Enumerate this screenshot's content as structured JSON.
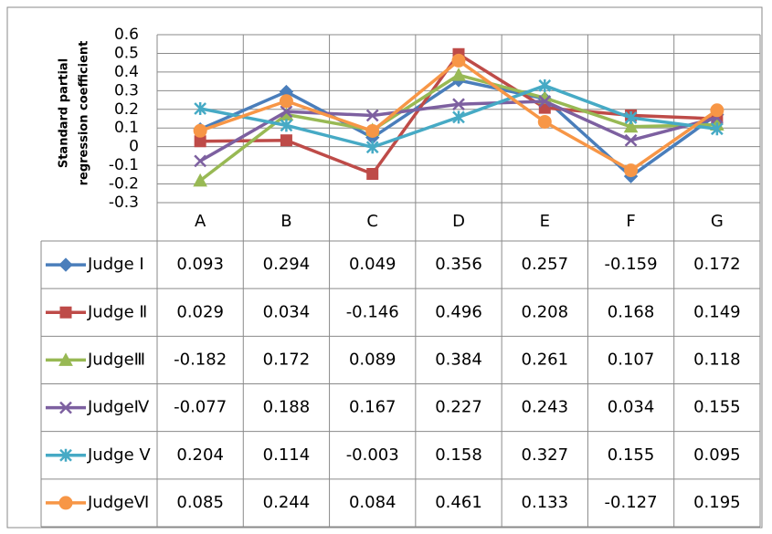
{
  "chart_data": {
    "type": "line",
    "ylabel": [
      "Standard partial",
      "regression coefficient"
    ],
    "categories": [
      "A",
      "B",
      "C",
      "D",
      "E",
      "F",
      "G"
    ],
    "ylim": [
      -0.3,
      0.6
    ],
    "yticks": [
      -0.3,
      -0.2,
      -0.1,
      0,
      0.1,
      0.2,
      0.3,
      0.4,
      0.5,
      0.6
    ],
    "grid": true,
    "series": [
      {
        "name": "Judge I",
        "color": "#4a7ebb",
        "marker": "diamond",
        "values": [
          0.093,
          0.294,
          0.049,
          0.356,
          0.257,
          -0.159,
          0.172
        ]
      },
      {
        "name": "Judge Ⅱ",
        "color": "#be4b48",
        "marker": "square",
        "values": [
          0.029,
          0.034,
          -0.146,
          0.496,
          0.208,
          0.168,
          0.149
        ]
      },
      {
        "name": "JudgeⅢ",
        "color": "#98b954",
        "marker": "triangle",
        "values": [
          -0.182,
          0.172,
          0.089,
          0.384,
          0.261,
          0.107,
          0.118
        ]
      },
      {
        "name": "JudgeⅣ",
        "color": "#7d60a0",
        "marker": "x",
        "values": [
          -0.077,
          0.188,
          0.167,
          0.227,
          0.243,
          0.034,
          0.155
        ]
      },
      {
        "name": "Judge Ⅴ",
        "color": "#46aac5",
        "marker": "star",
        "values": [
          0.204,
          0.114,
          -0.003,
          0.158,
          0.327,
          0.155,
          0.095
        ]
      },
      {
        "name": "JudgeⅥ",
        "color": "#f79646",
        "marker": "circle",
        "values": [
          0.085,
          0.244,
          0.084,
          0.461,
          0.133,
          -0.127,
          0.195
        ]
      }
    ]
  }
}
